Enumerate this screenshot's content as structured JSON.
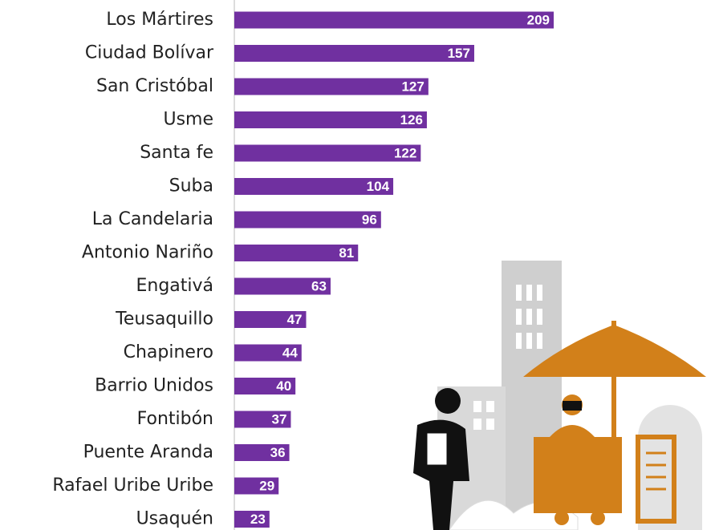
{
  "chart_data": {
    "type": "bar",
    "orientation": "horizontal",
    "color": "#7030a0",
    "categories": [
      "Los Mártires",
      "Ciudad Bolívar",
      "San Cristóbal",
      "Usme",
      "Santa fe",
      "Suba",
      "La Candelaria",
      "Antonio Nariño",
      "Engativá",
      "Teusaquillo",
      "Chapinero",
      "Barrio Unidos",
      "Fontibón",
      "Puente Aranda",
      "Rafael Uribe Uribe",
      "Usaquén"
    ],
    "values": [
      209,
      157,
      127,
      126,
      122,
      104,
      96,
      81,
      63,
      47,
      44,
      40,
      37,
      36,
      29,
      23
    ]
  }
}
